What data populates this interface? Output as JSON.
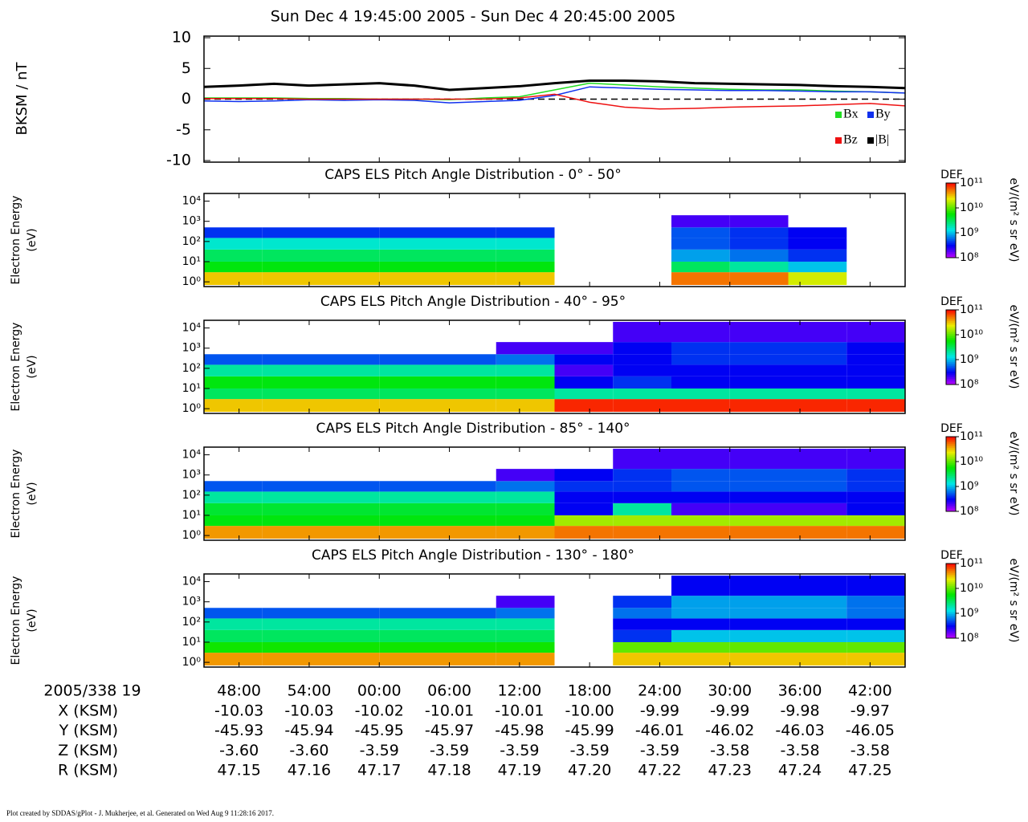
{
  "title": "Sun Dec 4 19:45:00 2005 - Sun Dec 4 20:45:00 2005",
  "chart_data": [
    {
      "type": "line",
      "ylabel": "BKSM / nT",
      "x": [
        "19:45",
        "19:48",
        "19:51",
        "19:54",
        "19:57",
        "20:00",
        "20:03",
        "20:06",
        "20:09",
        "20:12",
        "20:15",
        "20:18",
        "20:21",
        "20:24",
        "20:27",
        "20:30",
        "20:33",
        "20:36",
        "20:39",
        "20:42",
        "20:45"
      ],
      "xlim": [
        "19:45",
        "20:45"
      ],
      "xticks": [
        {
          "value": "19:48",
          "label": "48:00"
        },
        {
          "value": "19:54",
          "label": "54:00"
        },
        {
          "value": "20:00",
          "label": "00:00"
        },
        {
          "value": "20:06",
          "label": "06:00"
        },
        {
          "value": "20:12",
          "label": "12:00"
        },
        {
          "value": "20:18",
          "label": "18:00"
        },
        {
          "value": "20:24",
          "label": "24:00"
        },
        {
          "value": "20:30",
          "label": "30:00"
        },
        {
          "value": "20:36",
          "label": "36:00"
        },
        {
          "value": "20:42",
          "label": "42:00"
        }
      ],
      "ylim": [
        -10,
        10
      ],
      "yticks": [
        -10,
        -5,
        0,
        5,
        10
      ],
      "reference_line": 0,
      "series": [
        {
          "name": "Bx",
          "color": "#22dd22",
          "values": [
            0.2,
            0.2,
            0.2,
            0.1,
            0.1,
            0,
            0,
            -0.1,
            0.2,
            0.4,
            1.5,
            2.6,
            2.3,
            2.0,
            1.8,
            1.6,
            1.5,
            1.5,
            1.3,
            1.2,
            1.0
          ]
        },
        {
          "name": "By",
          "color": "#1030ee",
          "values": [
            -0.3,
            -0.4,
            -0.3,
            -0.1,
            -0.2,
            -0.1,
            -0.2,
            -0.6,
            -0.4,
            -0.2,
            0.6,
            2.0,
            1.8,
            1.6,
            1.5,
            1.4,
            1.4,
            1.3,
            1.2,
            1.2,
            1.0
          ]
        },
        {
          "name": "Bz",
          "color": "#ee1111",
          "values": [
            0.1,
            0.1,
            0.1,
            0,
            0,
            0,
            0,
            0,
            0,
            0.2,
            0.8,
            -0.5,
            -1.3,
            -1.6,
            -1.5,
            -1.3,
            -1.2,
            -1.1,
            -0.9,
            -0.7,
            -1.1
          ]
        },
        {
          "name": "|B|",
          "color": "#000000",
          "values": [
            2.0,
            2.2,
            2.5,
            2.2,
            2.4,
            2.6,
            2.2,
            1.5,
            1.8,
            2.1,
            2.6,
            3.0,
            3.0,
            2.9,
            2.6,
            2.5,
            2.4,
            2.3,
            2.1,
            2.0,
            1.8
          ]
        }
      ]
    },
    {
      "type": "heatmap",
      "title": "CAPS ELS Pitch Angle Distribution - 0° - 50°",
      "ylabel": [
        "Electron Energy",
        "(eV)"
      ],
      "x": [
        "19:45",
        "19:50",
        "19:55",
        "20:00",
        "20:05",
        "20:10",
        "20:15",
        "20:20",
        "20:25",
        "20:30",
        "20:35",
        "20:40",
        "20:45"
      ],
      "energy_bins": [
        0.7,
        3,
        10,
        40,
        150,
        500,
        2000,
        20000
      ],
      "ylim": [
        0.7,
        20000
      ],
      "ylog": true,
      "yticks": [
        {
          "value": 1,
          "label": "10⁰"
        },
        {
          "value": 10,
          "label": "10¹"
        },
        {
          "value": 100,
          "label": "10²"
        },
        {
          "value": 1000,
          "label": "10³"
        },
        {
          "value": 10000,
          "label": "10⁴"
        }
      ],
      "colorbar": {
        "label": "DEF",
        "unit": "eV/(m² s sr eV)",
        "clim": [
          100000000.0,
          100000000000.0
        ],
        "ticks": [
          {
            "value": 100000000.0,
            "label": "10⁸"
          },
          {
            "value": 1000000000.0,
            "label": "10⁹"
          },
          {
            "value": 10000000000.0,
            "label": "10¹⁰"
          },
          {
            "value": 100000000000.0,
            "label": "10¹¹"
          }
        ]
      },
      "values": [
        [
          30000000000.0,
          5000000000.0,
          3000000000.0,
          1500000000.0,
          400000000.0,
          null,
          null
        ],
        [
          30000000000.0,
          5000000000.0,
          3000000000.0,
          1500000000.0,
          400000000.0,
          null,
          null
        ],
        [
          30000000000.0,
          5000000000.0,
          3000000000.0,
          1500000000.0,
          400000000.0,
          null,
          null
        ],
        [
          30000000000.0,
          5000000000.0,
          3000000000.0,
          1500000000.0,
          400000000.0,
          null,
          null
        ],
        [
          30000000000.0,
          5000000000.0,
          3000000000.0,
          1500000000.0,
          400000000.0,
          null,
          null
        ],
        [
          30000000000.0,
          5000000000.0,
          3000000000.0,
          1500000000.0,
          400000000.0,
          null,
          null
        ],
        [
          null,
          null,
          null,
          null,
          null,
          null,
          null
        ],
        [
          null,
          null,
          null,
          null,
          null,
          null,
          null
        ],
        [
          50000000000.0,
          3000000000.0,
          800000000.0,
          500000000.0,
          500000000.0,
          200000000.0,
          null
        ],
        [
          50000000000.0,
          2000000000.0,
          600000000.0,
          400000000.0,
          400000000.0,
          200000000.0,
          null
        ],
        [
          20000000000.0,
          1000000000.0,
          400000000.0,
          300000000.0,
          300000000.0,
          null,
          null
        ],
        [
          null,
          null,
          null,
          null,
          null,
          null,
          null
        ]
      ]
    },
    {
      "type": "heatmap",
      "title": "CAPS ELS Pitch Angle Distribution - 40° - 95°",
      "ylabel": [
        "Electron Energy",
        "(eV)"
      ],
      "x": [
        "19:45",
        "19:50",
        "19:55",
        "20:00",
        "20:05",
        "20:10",
        "20:15",
        "20:20",
        "20:25",
        "20:30",
        "20:35",
        "20:40",
        "20:45"
      ],
      "energy_bins": [
        0.7,
        3,
        10,
        40,
        150,
        500,
        2000,
        20000
      ],
      "ylim": [
        0.7,
        20000
      ],
      "ylog": true,
      "yticks": [
        {
          "value": 1,
          "label": "10⁰"
        },
        {
          "value": 10,
          "label": "10¹"
        },
        {
          "value": 100,
          "label": "10²"
        },
        {
          "value": 1000,
          "label": "10³"
        },
        {
          "value": 10000,
          "label": "10⁴"
        }
      ],
      "colorbar": {
        "label": "DEF",
        "unit": "eV/(m² s sr eV)",
        "clim": [
          100000000.0,
          100000000000.0
        ],
        "ticks": [
          {
            "value": 100000000.0,
            "label": "10⁸"
          },
          {
            "value": 1000000000.0,
            "label": "10⁹"
          },
          {
            "value": 10000000000.0,
            "label": "10¹⁰"
          },
          {
            "value": 100000000000.0,
            "label": "10¹¹"
          }
        ]
      },
      "values": [
        [
          30000000000.0,
          3000000000.0,
          5000000000.0,
          2000000000.0,
          500000000.0,
          null,
          null
        ],
        [
          30000000000.0,
          3000000000.0,
          5000000000.0,
          2000000000.0,
          500000000.0,
          null,
          null
        ],
        [
          30000000000.0,
          3000000000.0,
          5000000000.0,
          2000000000.0,
          500000000.0,
          null,
          null
        ],
        [
          30000000000.0,
          3000000000.0,
          5000000000.0,
          2000000000.0,
          500000000.0,
          null,
          null
        ],
        [
          30000000000.0,
          3000000000.0,
          5000000000.0,
          2000000000.0,
          500000000.0,
          null,
          null
        ],
        [
          30000000000.0,
          3000000000.0,
          5000000000.0,
          2000000000.0,
          600000000.0,
          200000000.0,
          null
        ],
        [
          80000000000.0,
          2000000000.0,
          300000000.0,
          200000000.0,
          300000000.0,
          200000000.0,
          null
        ],
        [
          80000000000.0,
          2000000000.0,
          400000000.0,
          300000000.0,
          300000000.0,
          300000000.0,
          200000000.0
        ],
        [
          80000000000.0,
          2000000000.0,
          300000000.0,
          300000000.0,
          400000000.0,
          400000000.0,
          200000000.0
        ],
        [
          80000000000.0,
          2000000000.0,
          300000000.0,
          300000000.0,
          400000000.0,
          400000000.0,
          200000000.0
        ],
        [
          80000000000.0,
          2000000000.0,
          300000000.0,
          300000000.0,
          400000000.0,
          400000000.0,
          200000000.0
        ],
        [
          80000000000.0,
          2000000000.0,
          300000000.0,
          300000000.0,
          300000000.0,
          300000000.0,
          200000000.0
        ]
      ]
    },
    {
      "type": "heatmap",
      "title": "CAPS ELS Pitch Angle Distribution - 85° - 140°",
      "ylabel": [
        "Electron Energy",
        "(eV)"
      ],
      "x": [
        "19:45",
        "19:50",
        "19:55",
        "20:00",
        "20:05",
        "20:10",
        "20:15",
        "20:20",
        "20:25",
        "20:30",
        "20:35",
        "20:40",
        "20:45"
      ],
      "energy_bins": [
        0.7,
        3,
        10,
        40,
        150,
        500,
        2000,
        20000
      ],
      "ylim": [
        0.7,
        20000
      ],
      "ylog": true,
      "yticks": [
        {
          "value": 1,
          "label": "10⁰"
        },
        {
          "value": 10,
          "label": "10¹"
        },
        {
          "value": 100,
          "label": "10²"
        },
        {
          "value": 1000,
          "label": "10³"
        },
        {
          "value": 10000,
          "label": "10⁴"
        }
      ],
      "colorbar": {
        "label": "DEF",
        "unit": "eV/(m² s sr eV)",
        "clim": [
          100000000.0,
          100000000000.0
        ],
        "ticks": [
          {
            "value": 100000000.0,
            "label": "10⁸"
          },
          {
            "value": 1000000000.0,
            "label": "10⁹"
          },
          {
            "value": 10000000000.0,
            "label": "10¹⁰"
          },
          {
            "value": 100000000000.0,
            "label": "10¹¹"
          }
        ]
      },
      "values": [
        [
          40000000000.0,
          5000000000.0,
          4000000000.0,
          2000000000.0,
          500000000.0,
          null,
          null
        ],
        [
          40000000000.0,
          5000000000.0,
          4000000000.0,
          2000000000.0,
          500000000.0,
          null,
          null
        ],
        [
          40000000000.0,
          5000000000.0,
          4000000000.0,
          2000000000.0,
          500000000.0,
          null,
          null
        ],
        [
          40000000000.0,
          5000000000.0,
          4000000000.0,
          2000000000.0,
          500000000.0,
          null,
          null
        ],
        [
          40000000000.0,
          5000000000.0,
          4000000000.0,
          2000000000.0,
          500000000.0,
          null,
          null
        ],
        [
          40000000000.0,
          5000000000.0,
          4000000000.0,
          2000000000.0,
          600000000.0,
          200000000.0,
          null
        ],
        [
          50000000000.0,
          15000000000.0,
          300000000.0,
          300000000.0,
          400000000.0,
          300000000.0,
          null
        ],
        [
          50000000000.0,
          15000000000.0,
          2000000000.0,
          300000000.0,
          400000000.0,
          400000000.0,
          200000000.0
        ],
        [
          50000000000.0,
          15000000000.0,
          200000000.0,
          300000000.0,
          500000000.0,
          500000000.0,
          200000000.0
        ],
        [
          50000000000.0,
          15000000000.0,
          200000000.0,
          300000000.0,
          500000000.0,
          500000000.0,
          200000000.0
        ],
        [
          50000000000.0,
          15000000000.0,
          200000000.0,
          300000000.0,
          500000000.0,
          500000000.0,
          200000000.0
        ],
        [
          50000000000.0,
          15000000000.0,
          300000000.0,
          300000000.0,
          400000000.0,
          400000000.0,
          200000000.0
        ]
      ]
    },
    {
      "type": "heatmap",
      "title": "CAPS ELS Pitch Angle Distribution - 130° - 180°",
      "ylabel": [
        "Electron Energy",
        "(eV)"
      ],
      "x": [
        "19:45",
        "19:50",
        "19:55",
        "20:00",
        "20:05",
        "20:10",
        "20:15",
        "20:20",
        "20:25",
        "20:30",
        "20:35",
        "20:40",
        "20:45"
      ],
      "energy_bins": [
        0.7,
        3,
        10,
        40,
        150,
        500,
        2000,
        20000
      ],
      "ylim": [
        0.7,
        20000
      ],
      "ylog": true,
      "yticks": [
        {
          "value": 1,
          "label": "10⁰"
        },
        {
          "value": 10,
          "label": "10¹"
        },
        {
          "value": 100,
          "label": "10²"
        },
        {
          "value": 1000,
          "label": "10³"
        },
        {
          "value": 10000,
          "label": "10⁴"
        }
      ],
      "colorbar": {
        "label": "DEF",
        "unit": "eV/(m² s sr eV)",
        "clim": [
          100000000.0,
          100000000000.0
        ],
        "ticks": [
          {
            "value": 100000000.0,
            "label": "10⁸"
          },
          {
            "value": 1000000000.0,
            "label": "10⁹"
          },
          {
            "value": 10000000000.0,
            "label": "10¹⁰"
          },
          {
            "value": 100000000000.0,
            "label": "10¹¹"
          }
        ]
      },
      "values": [
        [
          40000000000.0,
          6000000000.0,
          3000000000.0,
          2000000000.0,
          500000000.0,
          null,
          null
        ],
        [
          40000000000.0,
          6000000000.0,
          3000000000.0,
          2000000000.0,
          500000000.0,
          null,
          null
        ],
        [
          40000000000.0,
          6000000000.0,
          3000000000.0,
          2000000000.0,
          500000000.0,
          null,
          null
        ],
        [
          40000000000.0,
          6000000000.0,
          3000000000.0,
          2000000000.0,
          500000000.0,
          null,
          null
        ],
        [
          40000000000.0,
          6000000000.0,
          3000000000.0,
          2000000000.0,
          500000000.0,
          null,
          null
        ],
        [
          40000000000.0,
          6000000000.0,
          3000000000.0,
          2000000000.0,
          600000000.0,
          200000000.0,
          null
        ],
        [
          null,
          null,
          null,
          null,
          null,
          null,
          null
        ],
        [
          30000000000.0,
          10000000000.0,
          400000000.0,
          300000000.0,
          600000000.0,
          400000000.0,
          null
        ],
        [
          30000000000.0,
          10000000000.0,
          1000000000.0,
          300000000.0,
          800000000.0,
          800000000.0,
          300000000.0
        ],
        [
          30000000000.0,
          10000000000.0,
          1000000000.0,
          300000000.0,
          800000000.0,
          800000000.0,
          300000000.0
        ],
        [
          30000000000.0,
          10000000000.0,
          1000000000.0,
          300000000.0,
          800000000.0,
          800000000.0,
          300000000.0
        ],
        [
          30000000000.0,
          10000000000.0,
          1000000000.0,
          300000000.0,
          600000000.0,
          600000000.0,
          300000000.0
        ]
      ]
    }
  ],
  "ephemeris": {
    "header": "2005/338 19",
    "rows": [
      {
        "label": "X (KSM)",
        "values": [
          "-10.03",
          "-10.03",
          "-10.02",
          "-10.01",
          "-10.01",
          "-10.00",
          "-9.99",
          "-9.99",
          "-9.98",
          "-9.97"
        ]
      },
      {
        "label": "Y (KSM)",
        "values": [
          "-45.93",
          "-45.94",
          "-45.95",
          "-45.97",
          "-45.98",
          "-45.99",
          "-46.01",
          "-46.02",
          "-46.03",
          "-46.05"
        ]
      },
      {
        "label": "Z (KSM)",
        "values": [
          "-3.60",
          "-3.60",
          "-3.59",
          "-3.59",
          "-3.59",
          "-3.59",
          "-3.59",
          "-3.58",
          "-3.58",
          "-3.58"
        ]
      },
      {
        "label": "R (KSM)",
        "values": [
          "47.15",
          "47.16",
          "47.17",
          "47.18",
          "47.19",
          "47.20",
          "47.22",
          "47.23",
          "47.24",
          "47.25"
        ]
      }
    ]
  },
  "footer": "Plot created by SDDAS/gPlot - J. Mukherjee, et al.  Generated on Wed Aug 9 11:28:16 2017."
}
